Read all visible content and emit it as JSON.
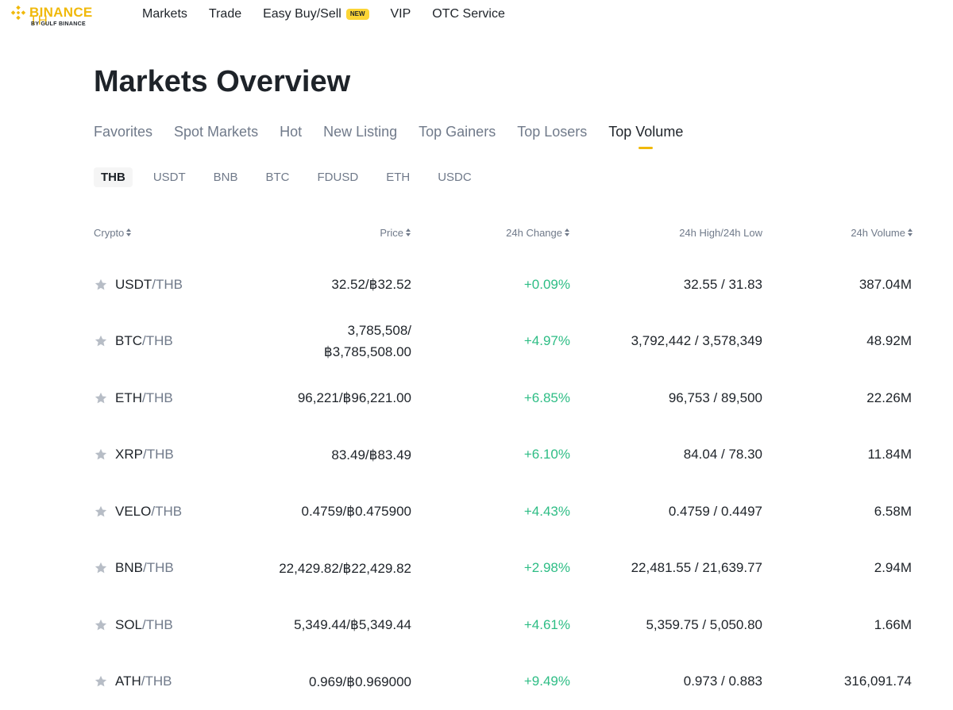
{
  "header": {
    "logo_name": "BINANCE",
    "logo_suffix": " TH",
    "logo_sub": "BY GULF BINANCE",
    "brand_color": "#f0b90b",
    "nav": [
      {
        "label": "Markets"
      },
      {
        "label": "Trade"
      },
      {
        "label": "Easy Buy/Sell",
        "badge": "NEW"
      },
      {
        "label": "VIP"
      },
      {
        "label": "OTC Service"
      }
    ]
  },
  "page": {
    "title": "Markets Overview",
    "tabs": [
      {
        "label": "Favorites"
      },
      {
        "label": "Spot Markets"
      },
      {
        "label": "Hot"
      },
      {
        "label": "New Listing"
      },
      {
        "label": "Top Gainers"
      },
      {
        "label": "Top Losers"
      },
      {
        "label": "Top Volume",
        "active": true
      }
    ],
    "quotes": [
      "THB",
      "USDT",
      "BNB",
      "BTC",
      "FDUSD",
      "ETH",
      "USDC"
    ],
    "active_quote": "THB"
  },
  "table": {
    "columns": {
      "crypto": "Crypto",
      "price": "Price",
      "change": "24h Change",
      "high_low": "24h High/24h Low",
      "volume": "24h Volume"
    },
    "positive_color": "#2ebd85",
    "star_icon": "star-icon",
    "rows": [
      {
        "base": "USDT",
        "quote": "/THB",
        "price_line1": "32.52/฿32.52",
        "price_line2": "",
        "change": "+0.09%",
        "high_low": "32.55 / 31.83",
        "volume": "387.04M"
      },
      {
        "base": "BTC",
        "quote": "/THB",
        "price_line1": "3,785,508/",
        "price_line2": "฿3,785,508.00",
        "change": "+4.97%",
        "high_low": "3,792,442 / 3,578,349",
        "volume": "48.92M"
      },
      {
        "base": "ETH",
        "quote": "/THB",
        "price_line1": "96,221/฿96,221.00",
        "price_line2": "",
        "change": "+6.85%",
        "high_low": "96,753 / 89,500",
        "volume": "22.26M"
      },
      {
        "base": "XRP",
        "quote": "/THB",
        "price_line1": "83.49/฿83.49",
        "price_line2": "",
        "change": "+6.10%",
        "high_low": "84.04 / 78.30",
        "volume": "11.84M"
      },
      {
        "base": "VELO",
        "quote": "/THB",
        "price_line1": "0.4759/฿0.475900",
        "price_line2": "",
        "change": "+4.43%",
        "high_low": "0.4759 / 0.4497",
        "volume": "6.58M"
      },
      {
        "base": "BNB",
        "quote": "/THB",
        "price_line1": "22,429.82/฿22,429.82",
        "price_line2": "",
        "change": "+2.98%",
        "high_low": "22,481.55 / 21,639.77",
        "volume": "2.94M"
      },
      {
        "base": "SOL",
        "quote": "/THB",
        "price_line1": "5,349.44/฿5,349.44",
        "price_line2": "",
        "change": "+4.61%",
        "high_low": "5,359.75 / 5,050.80",
        "volume": "1.66M"
      },
      {
        "base": "ATH",
        "quote": "/THB",
        "price_line1": "0.969/฿0.969000",
        "price_line2": "",
        "change": "+9.49%",
        "high_low": "0.973 / 0.883",
        "volume": "316,091.74"
      }
    ]
  }
}
